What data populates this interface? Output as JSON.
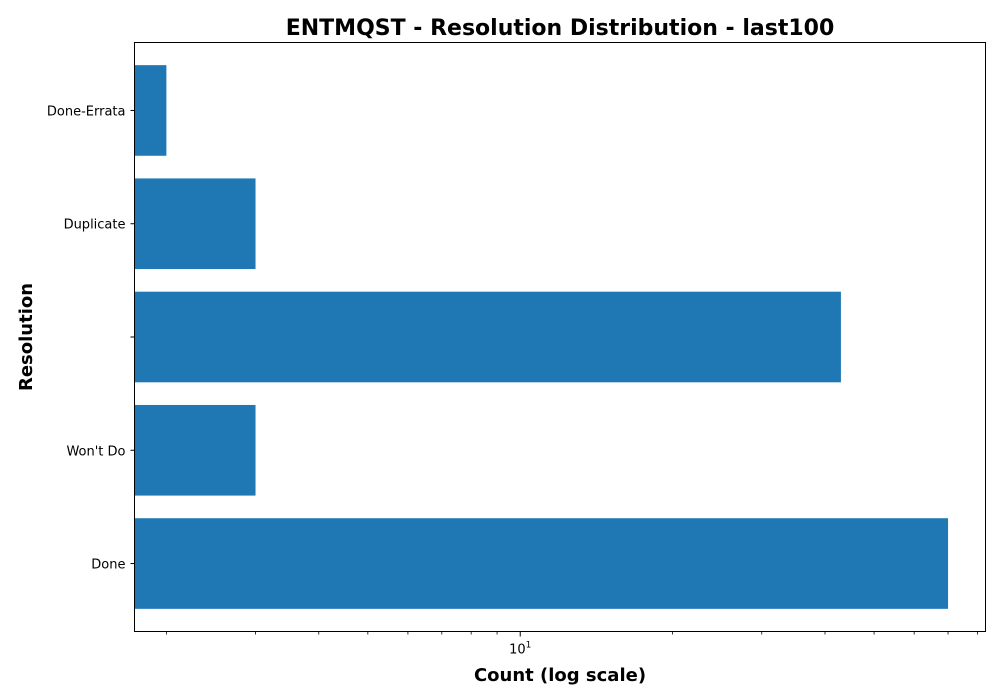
{
  "chart_data": {
    "type": "bar",
    "orientation": "horizontal",
    "title": "ENTMQST - Resolution Distribution - last100",
    "xlabel": "Count (log scale)",
    "ylabel": "Resolution",
    "x_scale": "log",
    "xlim": [
      1.73,
      83
    ],
    "x_major_ticks": [
      {
        "base": "10",
        "exponent": "1",
        "value": 10
      }
    ],
    "x_minor_ticks": [
      2,
      3,
      4,
      5,
      6,
      7,
      8,
      9,
      20,
      30,
      40,
      50,
      60,
      70,
      80
    ],
    "categories": [
      "Done",
      "Won't Do",
      "",
      "Duplicate",
      "Done-Errata"
    ],
    "values": [
      70,
      3,
      43,
      3,
      2
    ],
    "color": "#1f77b4",
    "grid": false,
    "legend": "none"
  }
}
